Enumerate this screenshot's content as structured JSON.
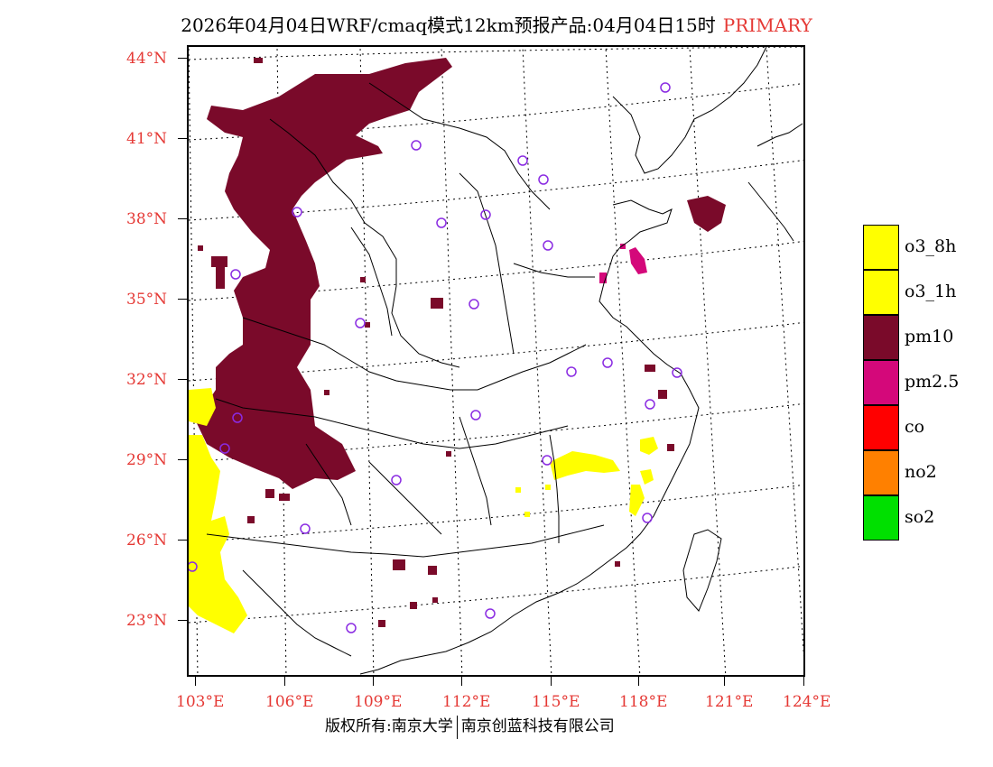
{
  "title": {
    "main": "2026年04月04日WRF/cmaq模式12km预报产品:04月04日15时",
    "tag": "PRIMARY"
  },
  "axes": {
    "latitudes": [
      "44°N",
      "41°N",
      "38°N",
      "35°N",
      "32°N",
      "29°N",
      "26°N",
      "23°N"
    ],
    "longitudes": [
      "103°E",
      "106°E",
      "109°E",
      "112°E",
      "115°E",
      "118°E",
      "121°E",
      "124°E"
    ]
  },
  "legend": [
    {
      "label": "o3_8h",
      "color": "#ffff00"
    },
    {
      "label": "o3_1h",
      "color": "#ffff00"
    },
    {
      "label": "pm10",
      "color": "#7a0a2a"
    },
    {
      "label": "pm2.5",
      "color": "#d4087a"
    },
    {
      "label": "co",
      "color": "#ff0000"
    },
    {
      "label": "no2",
      "color": "#ff8000"
    },
    {
      "label": "so2",
      "color": "#00e000"
    }
  ],
  "colors": {
    "pm10": "#7a0a2a",
    "pm25": "#d4087a",
    "o3": "#ffff00",
    "station": "#8a2be2",
    "axis_label": "#e53935"
  },
  "footer": {
    "left": "版权所有:南京大学",
    "right": "南京创蓝科技有限公司"
  }
}
